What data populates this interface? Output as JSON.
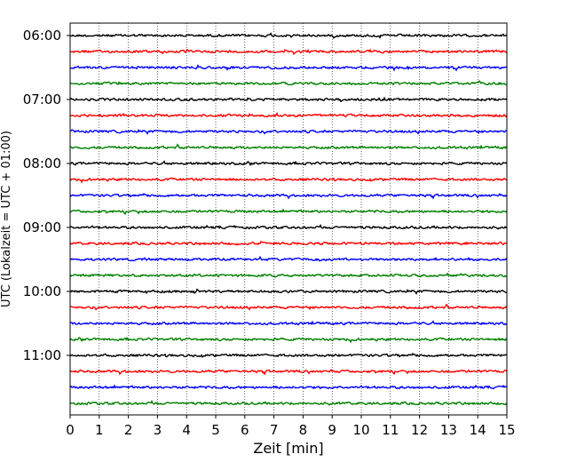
{
  "chart_data": {
    "type": "line",
    "title": "",
    "xlabel": "Zeit  [min]",
    "ylabel": "UTC (Lokalzeit = UTC + 01:00)",
    "xlim": [
      0,
      15
    ],
    "x_ticks": [
      0,
      1,
      2,
      3,
      4,
      5,
      6,
      7,
      8,
      9,
      10,
      11,
      12,
      13,
      14,
      15
    ],
    "y_tick_labels": [
      "06:00",
      "07:00",
      "08:00",
      "09:00",
      "10:00",
      "11:00"
    ],
    "grid": "vertical-dotted",
    "trace_interval_minutes": 15,
    "trace_start": "06:00",
    "trace_count": 24,
    "trace_colors": [
      "#000000",
      "#ff0000",
      "#0000ff",
      "#008000"
    ],
    "series_note_values": []
  }
}
